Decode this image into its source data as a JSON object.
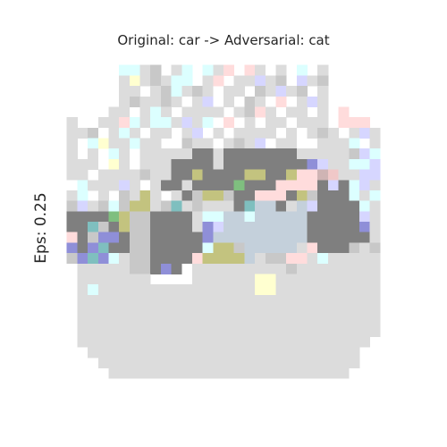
{
  "figure": {
    "title": "Original: car -> Adversarial: cat",
    "ylabel": "Eps: 0.25"
  },
  "image": {
    "grid_size": 32,
    "subject": "car",
    "palette": {
      "W": "#ffffff",
      "L": "#dcdcdc",
      "G": "#c8c8c8",
      "D": "#7f7f7f",
      "S": "#c4d0db",
      "C": "#dcffff",
      "Y": "#ffffd0",
      "P": "#ffdcdc",
      "V": "#d6d6ff",
      "B": "#8f8fd8",
      "T": "#7fbfbf",
      "O": "#c3c37f",
      "N": "#7fbf7f",
      "Q": "#cfb4b4",
      "R": "#f0c8c8"
    },
    "rows": [
      "WWWWWWWWWWWWWWWWWWWWWWWWWWWWWWWW",
      "WWWWWWCCLGWLCWCLPWPLWLWCWLWWWWWW",
      "WWWWWWLYLGLCCWLPWLLVLGWVLGWWWWWW",
      "WWWWWWLLWLGCLGLWLLWGLVLGWLWWWWWW",
      "WWWWWWLGLLGLWLVWLWGLWPWLVLWWWWWW",
      "WWWWWLLWLCLWLLLLWLGPLWLLWLWPWWWW",
      "WLWWLLPCLCCLVLCWPWLWLLWLLLWPPPWW",
      "WLLGWLCLWLLWLVWLWLLLLWLWLGLWLVLW",
      "WLWCYLLCLLWWGLLWLGLVWLLWWLLLCWLW",
      "WLWLWCLWLLLLLDDLDDDDDDDLLLLLGVCW",
      "WLLLWYLWLLLDDDDLDDDDDDDDBVLLCCVW",
      "WLLWLLLLGLLDDODDDDOODDOPPQRLLVVW",
      "WWCLLLVLWLDDLDDDDNDDDPPPPDVDCVLW",
      "WLCWLWGLOLWLDGOOGDDPPPDOGDDDCLCW",
      "WGVLGCGOOLGTLGLLLDTSSDLSVDDDDCLW",
      "WDDDDNOGGDDDDLCCSSCSSSSSDDDDDVLW",
      "WDDTGDOGGDDDDLBVSSSSSSSSDDDDDBLW",
      "WPDGBBDGGDDDDDBSSSSSSSSSDDDDDDLW",
      "WBDBTDDGGDDDDDCOOGSSSSSLPDDDGLGW",
      "WGBTBCLGGDDDDPOOOOSLGGPPLCLLLLLW",
      "WWLLLLLGGDBDWLLLLLLLLLGLLLLLLLLW",
      "WWLLLLLLLWWWWLLLLLLYYLLLLLLLLLLW",
      "WWLCLLLLLLLLLLLLLLLYYLLLLLLLLLLW",
      "WWLLLLLLLLLLLLLLLLLLLLLLLLLLLLLW",
      "WWLLLLLLLLLLLLLLLLLLLLLLLLLLLLLW",
      "WWLLLLLLLLLLLLLLLLLLLLLLLLLLLLLW",
      "WWLLLLLLLLLLLLLLLLLLLLLLLLLLLLLW",
      "WWLLLLLLLLLLLLLLLLLLLLLLLLLLLLWW",
      "WWWLLLLLLLLLLLLLLLLLLLLLLLLLLWWW",
      "WWWWLLLLLLLLLLLLLLLLLLLLLLLLLWWW",
      "WWWWWLLLLLLLLLLLLLLLLLLLLLLLWWWW",
      "WWWWWWWWWWWWWWWWWWWWWWWWWWWWWWWW"
    ]
  }
}
